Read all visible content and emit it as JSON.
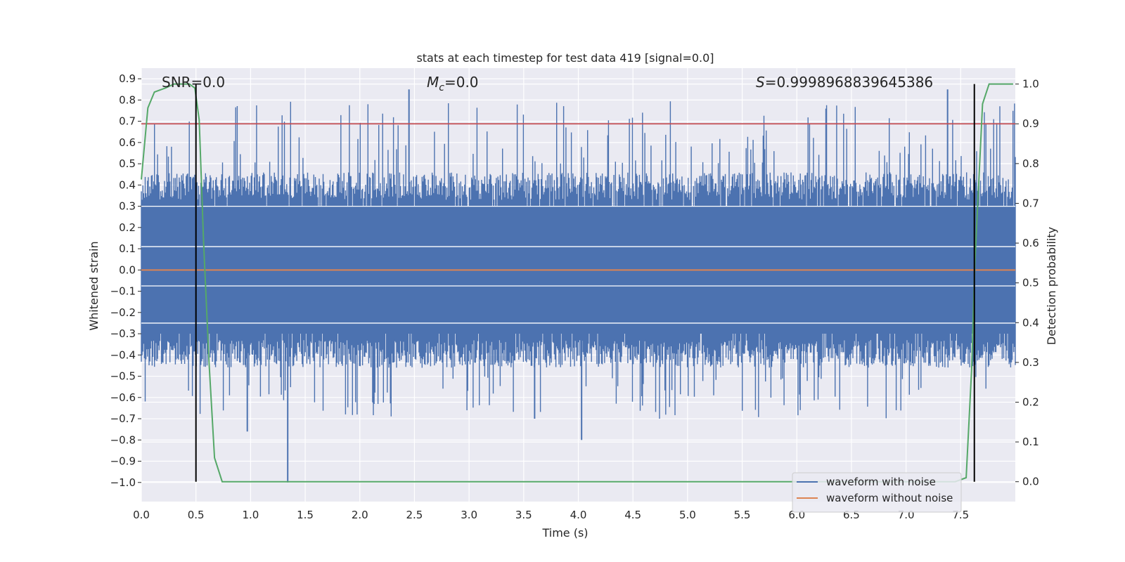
{
  "chart_data": {
    "type": "line",
    "title": "stats at each timestep for test data 419 [signal=0.0]",
    "xlabel": "Time (s)",
    "ylabel": "Whitened strain",
    "ylabel_right": "Detection probability",
    "xlim": [
      0.0,
      8.0
    ],
    "ylim": [
      -1.09,
      0.95
    ],
    "ylim_right": [
      -0.05,
      1.04
    ],
    "x_ticks": [
      "0.0",
      "0.5",
      "1.0",
      "1.5",
      "2.0",
      "2.5",
      "3.0",
      "3.5",
      "4.0",
      "4.5",
      "5.0",
      "5.5",
      "6.0",
      "6.5",
      "7.0",
      "7.5"
    ],
    "y_ticks": [
      "0.9",
      "0.8",
      "0.7",
      "0.6",
      "0.5",
      "0.4",
      "0.3",
      "0.2",
      "0.1",
      "0.0",
      "−0.1",
      "−0.2",
      "−0.3",
      "−0.4",
      "−0.5",
      "−0.6",
      "−0.7",
      "−0.8",
      "−0.9",
      "−1.0"
    ],
    "y_ticks_right": [
      "1.0",
      "0.9",
      "0.8",
      "0.7",
      "0.6",
      "0.5",
      "0.4",
      "0.3",
      "0.2",
      "0.1",
      "0.0"
    ],
    "annotations": {
      "snr": "SNR=0.0",
      "mc_symbol": "M",
      "mc_sub": "c",
      "mc_value": "=0.0",
      "s_symbol": "S",
      "s_value": "=0.9998968839645386"
    },
    "legend": [
      {
        "label": "waveform with noise",
        "color": "#4c72b0"
      },
      {
        "label": "waveform without noise",
        "color": "#dd8452"
      }
    ],
    "series": [
      {
        "name": "waveform with noise",
        "axis": "left",
        "color": "#4c72b0",
        "description": "dense noise, envelope approx -0.5 to 0.5 with spikes to 0.85 and -1.0"
      },
      {
        "name": "waveform without noise",
        "axis": "left",
        "color": "#dd8452",
        "x": [
          0.0,
          8.0
        ],
        "y": [
          0.0,
          0.0
        ]
      },
      {
        "name": "detection probability",
        "axis": "right",
        "color": "#55a868",
        "x": [
          0.0,
          0.06,
          0.12,
          0.22,
          0.3,
          0.38,
          0.44,
          0.49,
          0.53,
          0.57,
          0.62,
          0.67,
          0.74,
          0.82,
          2.0,
          4.0,
          6.0,
          7.0,
          7.45,
          7.55,
          7.6,
          7.63,
          7.7,
          7.76,
          7.85,
          7.98
        ],
        "y": [
          0.76,
          0.94,
          0.98,
          0.99,
          1.0,
          1.0,
          1.0,
          0.99,
          0.91,
          0.6,
          0.3,
          0.06,
          0.0,
          0.0,
          0.0,
          0.0,
          0.0,
          0.0,
          0.0,
          0.01,
          0.28,
          0.55,
          0.95,
          1.0,
          1.0,
          1.0
        ]
      },
      {
        "name": "threshold",
        "axis": "right",
        "color": "#c44e52",
        "x": [
          0.0,
          8.0
        ],
        "y": [
          0.9,
          0.9
        ]
      }
    ],
    "vertical_lines": [
      0.5,
      7.625
    ],
    "vertical_line_range_right": [
      0.0,
      1.0
    ],
    "grid": true,
    "legend_position": "lower right"
  }
}
